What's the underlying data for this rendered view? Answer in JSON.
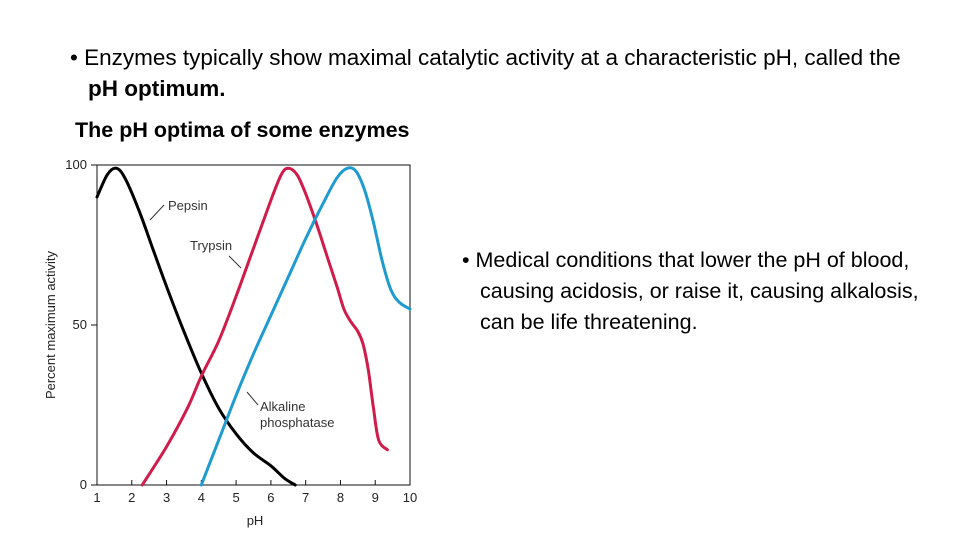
{
  "bullet_top": {
    "marker": "•",
    "text_before": " Enzymes typically show maximal catalytic activity at a characteristic pH, called the ",
    "text_bold": "pH optimum."
  },
  "subtitle": "The pH optima of some enzymes",
  "bullet_right": {
    "marker": "•",
    "text": " Medical conditions that lower the pH of blood, causing acidosis, or raise it, causing alkalosis, can be life threatening."
  },
  "chart_data": {
    "type": "line",
    "xlabel": "pH",
    "ylabel": "Percent maximum activity",
    "xlim": [
      1,
      10
    ],
    "ylim": [
      0,
      100
    ],
    "xticks": [
      1,
      2,
      3,
      4,
      5,
      6,
      7,
      8,
      9,
      10
    ],
    "yticks": [
      0,
      50,
      100
    ],
    "series": [
      {
        "name": "Pepsin",
        "label": "Pepsin",
        "color": "#000000",
        "points": [
          [
            1.0,
            90
          ],
          [
            1.3,
            97
          ],
          [
            1.55,
            99
          ],
          [
            1.8,
            96
          ],
          [
            2.2,
            86
          ],
          [
            2.6,
            74
          ],
          [
            3.0,
            62
          ],
          [
            3.5,
            48
          ],
          [
            4.0,
            35
          ],
          [
            4.5,
            24
          ],
          [
            5.0,
            16
          ],
          [
            5.5,
            10
          ],
          [
            6.0,
            6
          ],
          [
            6.4,
            2
          ],
          [
            6.7,
            0
          ]
        ]
      },
      {
        "name": "Trypsin",
        "label": "Trypsin",
        "color": "#d01c4a",
        "points": [
          [
            2.3,
            0
          ],
          [
            3.0,
            12
          ],
          [
            3.6,
            24
          ],
          [
            4.0,
            34
          ],
          [
            4.5,
            45
          ],
          [
            5.0,
            59
          ],
          [
            5.5,
            74
          ],
          [
            6.0,
            89
          ],
          [
            6.3,
            97
          ],
          [
            6.5,
            99
          ],
          [
            6.75,
            97
          ],
          [
            7.0,
            91
          ],
          [
            7.3,
            82
          ],
          [
            7.6,
            72
          ],
          [
            7.9,
            62
          ],
          [
            8.1,
            55
          ],
          [
            8.3,
            51
          ],
          [
            8.5,
            48
          ],
          [
            8.65,
            44
          ],
          [
            8.8,
            36
          ],
          [
            8.95,
            24
          ],
          [
            9.1,
            14
          ],
          [
            9.35,
            11
          ]
        ]
      },
      {
        "name": "Alkaline phosphatase",
        "label": "Alkaline\nphosphatase",
        "color": "#1f9bd0",
        "points": [
          [
            4.0,
            0
          ],
          [
            4.5,
            14
          ],
          [
            5.0,
            28
          ],
          [
            5.5,
            41
          ],
          [
            6.0,
            53
          ],
          [
            6.5,
            65
          ],
          [
            7.0,
            77
          ],
          [
            7.5,
            88
          ],
          [
            7.9,
            96
          ],
          [
            8.2,
            99
          ],
          [
            8.45,
            98
          ],
          [
            8.7,
            92
          ],
          [
            8.95,
            82
          ],
          [
            9.2,
            70
          ],
          [
            9.45,
            61
          ],
          [
            9.7,
            57
          ],
          [
            10.0,
            55
          ]
        ]
      }
    ]
  }
}
